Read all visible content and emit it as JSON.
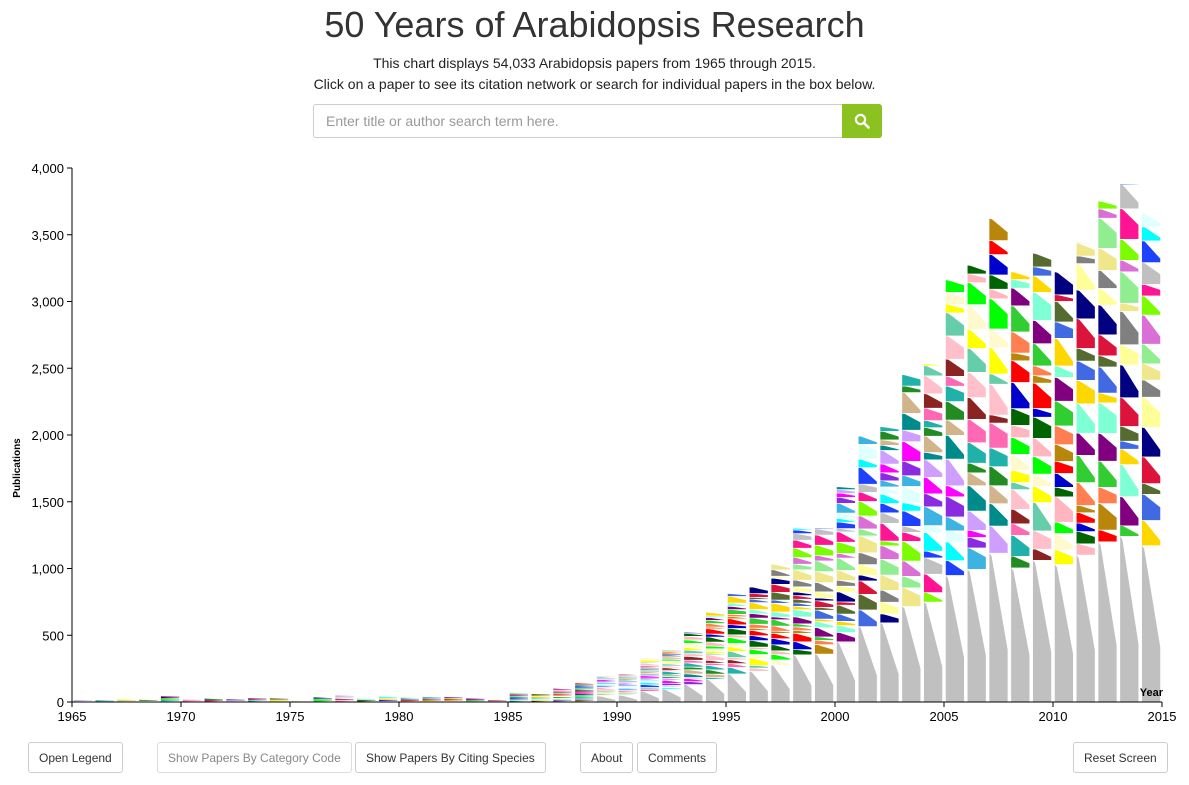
{
  "header": {
    "title": "50 Years of Arabidopsis Research",
    "subtitle_line1": "This chart displays 54,033 Arabidopsis papers from 1965 through 2015.",
    "subtitle_line2": "Click on a paper to see its citation network or search for individual papers in the box below."
  },
  "search": {
    "placeholder": "Enter title or author search term here.",
    "value": "",
    "button_icon": "search-icon",
    "button_color": "#8cc21f"
  },
  "chart_data": {
    "type": "bar",
    "title": "",
    "xlabel": "Year",
    "ylabel": "Publications",
    "xlim": [
      1965,
      2015
    ],
    "ylim": [
      0,
      4000
    ],
    "x_ticks": [
      1965,
      1970,
      1975,
      1980,
      1985,
      1990,
      1995,
      2000,
      2005,
      2010,
      2015
    ],
    "y_ticks": [
      0,
      500,
      1000,
      1500,
      2000,
      2500,
      3000,
      3500,
      4000
    ],
    "y_tick_labels": [
      "0",
      "500",
      "1,000",
      "1,500",
      "2,000",
      "2,500",
      "3,000",
      "3,500",
      "4,000"
    ],
    "grid": false,
    "categories": [
      1965,
      1966,
      1967,
      1968,
      1969,
      1970,
      1971,
      1972,
      1973,
      1974,
      1975,
      1976,
      1977,
      1978,
      1979,
      1980,
      1981,
      1982,
      1983,
      1984,
      1985,
      1986,
      1987,
      1988,
      1989,
      1990,
      1991,
      1992,
      1993,
      1994,
      1995,
      1996,
      1997,
      1998,
      1999,
      2000,
      2001,
      2002,
      2003,
      2004,
      2005,
      2006,
      2007,
      2008,
      2009,
      2010,
      2011,
      2012,
      2013,
      2014
    ],
    "values": [
      15,
      12,
      20,
      25,
      45,
      20,
      25,
      20,
      30,
      28,
      12,
      35,
      50,
      25,
      40,
      35,
      38,
      38,
      28,
      20,
      70,
      60,
      100,
      140,
      190,
      210,
      330,
      390,
      520,
      670,
      810,
      870,
      1030,
      1300,
      1300,
      1610,
      1990,
      2060,
      2450,
      2530,
      3160,
      3270,
      3620,
      3220,
      3360,
      3220,
      3440,
      3750,
      3880,
      3660
    ],
    "series_colors": [
      "#c0c0c0",
      "#1e40ff",
      "#00ffff",
      "#e0ffff",
      "#3cb3e0",
      "#8a2be2",
      "#ff00ff",
      "#cf9fff",
      "#008b8b",
      "#d2b48c",
      "#228b22",
      "#20b2aa",
      "#ff69b4",
      "#8b2323",
      "#ffc0cb",
      "#66cdaa",
      "#ffff00",
      "#fffacd",
      "#00ff00",
      "#ffb6c1",
      "#006400",
      "#0000cd",
      "#ff0000",
      "#b8860b",
      "#ff7f50",
      "#32cd32",
      "#800080",
      "#7fffd4",
      "#ffd700",
      "#4169e1",
      "#556b2f",
      "#dc143c",
      "#000080",
      "#ffff99",
      "#808080",
      "#f0e68c",
      "#90ee90",
      "#da70d6",
      "#7cfc00",
      "#ff1493"
    ]
  },
  "buttons": {
    "open_legend": "Open Legend",
    "by_category": "Show Papers By Category Code",
    "by_species": "Show Papers By Citing Species",
    "about": "About",
    "comments": "Comments",
    "reset": "Reset Screen"
  }
}
